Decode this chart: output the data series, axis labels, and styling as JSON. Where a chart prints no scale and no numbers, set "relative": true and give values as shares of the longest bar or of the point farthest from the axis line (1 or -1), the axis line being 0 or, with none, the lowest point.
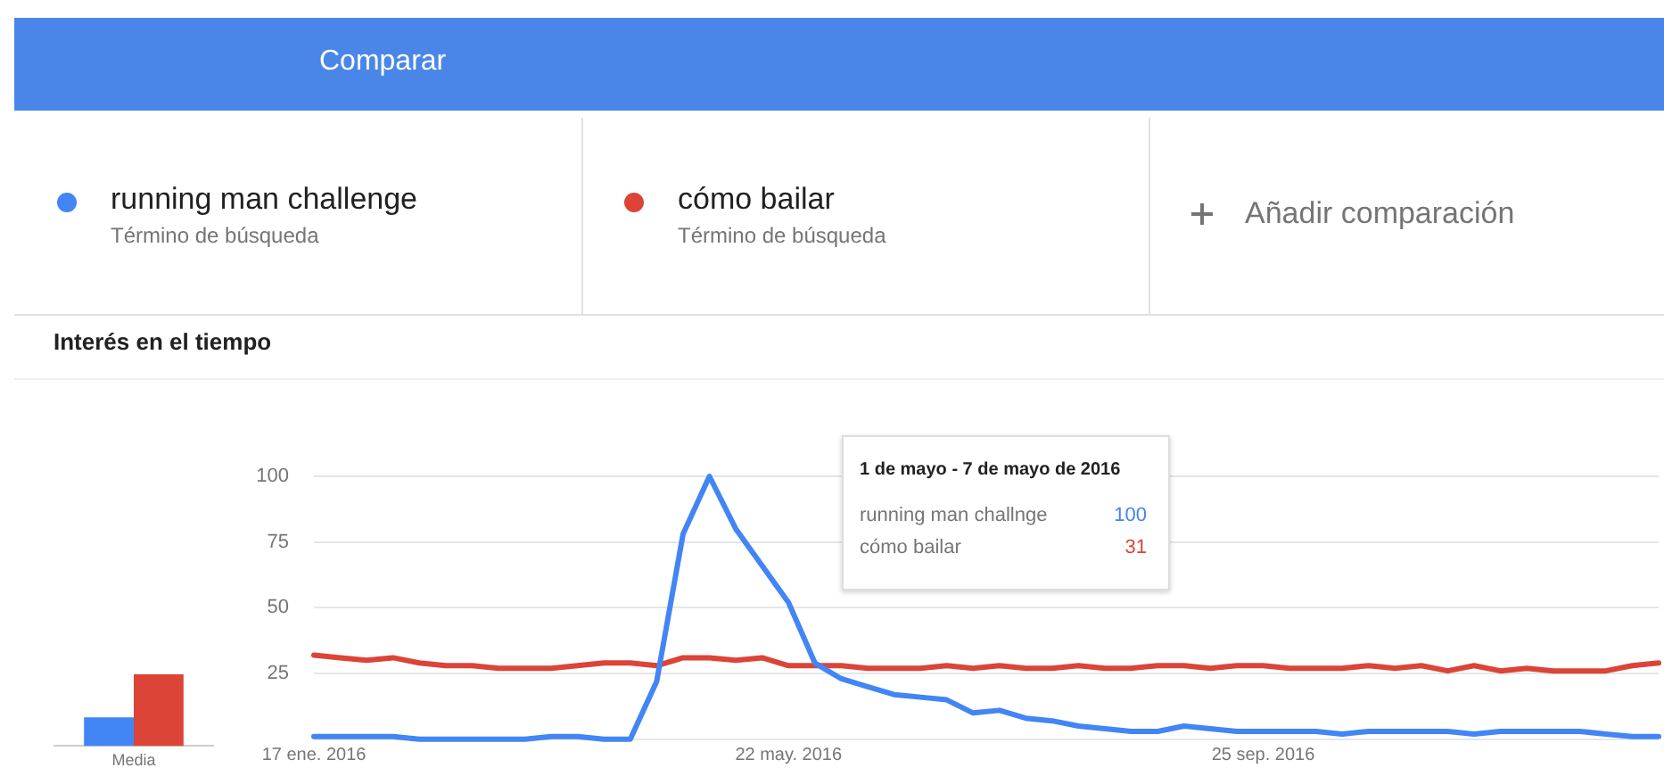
{
  "chart_data": [
    {
      "type": "line",
      "title": "Interés en el tiempo",
      "legend": "top left",
      "grid": "y",
      "marker": "none",
      "line_style": "solid",
      "x": [
        "2016-01-17",
        "2016-01-24",
        "2016-01-31",
        "2016-02-07",
        "2016-02-14",
        "2016-02-21",
        "2016-02-28",
        "2016-03-06",
        "2016-03-13",
        "2016-03-20",
        "2016-03-27",
        "2016-04-03",
        "2016-04-10",
        "2016-04-17",
        "2016-04-24",
        "2016-05-01",
        "2016-05-08",
        "2016-05-15",
        "2016-05-22",
        "2016-05-29",
        "2016-06-05",
        "2016-06-12",
        "2016-06-19",
        "2016-06-26",
        "2016-07-03",
        "2016-07-10",
        "2016-07-17",
        "2016-07-24",
        "2016-07-31",
        "2016-08-07",
        "2016-08-14",
        "2016-08-21",
        "2016-08-28",
        "2016-09-04",
        "2016-09-11",
        "2016-09-18",
        "2016-09-25",
        "2016-10-02",
        "2016-10-09",
        "2016-10-16",
        "2016-10-23",
        "2016-10-30",
        "2016-11-06",
        "2016-11-13",
        "2016-11-20",
        "2016-11-27",
        "2016-12-04",
        "2016-12-11",
        "2016-12-18",
        "2016-12-25",
        "2017-01-01",
        "2017-01-08"
      ],
      "series": [
        {
          "name": "running man challenge",
          "color": "#4285f4",
          "values": [
            1,
            1,
            1,
            1,
            0,
            0,
            0,
            0,
            0,
            1,
            1,
            0,
            0,
            22,
            78,
            100,
            80,
            66,
            52,
            29,
            23,
            20,
            17,
            16,
            15,
            10,
            11,
            8,
            7,
            5,
            4,
            3,
            3,
            5,
            4,
            3,
            3,
            3,
            3,
            2,
            3,
            3,
            3,
            3,
            2,
            3,
            3,
            3,
            3,
            2,
            1,
            1
          ]
        },
        {
          "name": "cómo bailar",
          "color": "#db4437",
          "values": [
            32,
            31,
            30,
            31,
            29,
            28,
            28,
            27,
            27,
            27,
            28,
            29,
            29,
            28,
            31,
            31,
            30,
            31,
            28,
            28,
            28,
            27,
            27,
            27,
            28,
            27,
            28,
            27,
            27,
            28,
            27,
            27,
            28,
            28,
            27,
            28,
            28,
            27,
            27,
            27,
            28,
            27,
            28,
            26,
            28,
            26,
            27,
            26,
            26,
            26,
            28,
            29
          ]
        }
      ],
      "xlim": [
        "2016-01-17",
        "2017-01-08"
      ],
      "xticks": [
        {
          "value": "2016-01-17",
          "label": "17 ene. 2016"
        },
        {
          "value": "2016-05-22",
          "label": "22 may. 2016"
        },
        {
          "value": "2016-09-25",
          "label": "25 sep. 2016"
        }
      ],
      "ylim": [
        0,
        100
      ],
      "yticks": [
        {
          "value": 0,
          "label": null
        },
        25,
        50,
        75,
        100
      ],
      "annotations": [
        "Comparar",
        "Término de búsqueda",
        "Término de búsqueda",
        "Añadir comparación",
        "1 de mayo - 7 de mayo de 2016",
        "running man challnge",
        "100",
        "cómo bailar",
        "31"
      ]
    },
    {
      "type": "bar",
      "relative": true,
      "categories": [
        "Media"
      ],
      "tick_labels": "x",
      "grid": false,
      "legend": false,
      "series": [
        {
          "color": "#4285f4",
          "values": [
            0.4
          ]
        },
        {
          "color": "#db4437",
          "values": [
            1
          ]
        }
      ]
    }
  ]
}
